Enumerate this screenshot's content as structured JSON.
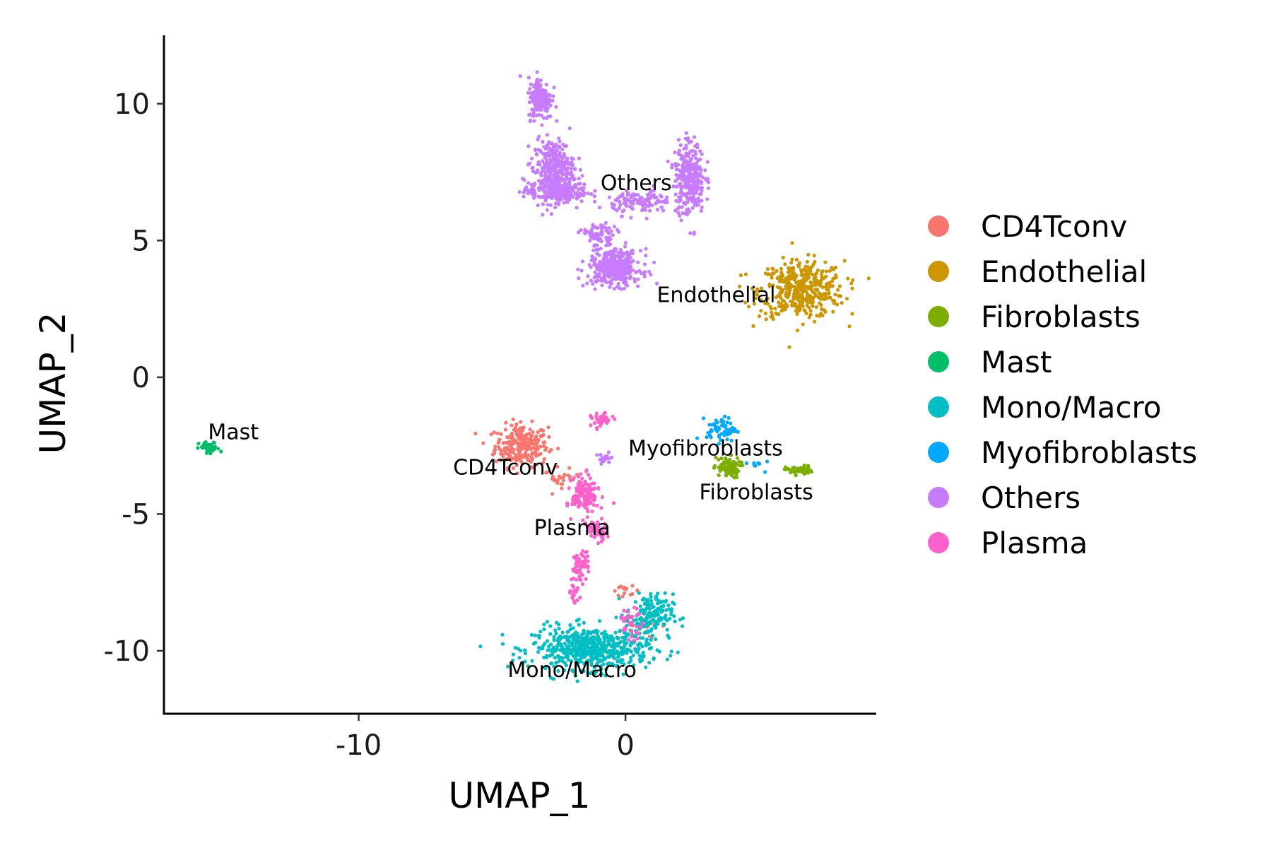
{
  "chart_data": {
    "type": "scatter",
    "title": "",
    "xlabel": "UMAP_1",
    "ylabel": "UMAP_2",
    "xlim": [
      -17.3,
      9.4
    ],
    "ylim": [
      -12.3,
      12.5
    ],
    "xticks": [
      -10,
      0
    ],
    "yticks": [
      -10,
      -5,
      0,
      5,
      10
    ],
    "legend_position": "right",
    "grid": false,
    "series": [
      {
        "name": "CD4Tconv",
        "color": "#F8766D",
        "clusters": [
          {
            "cx": -3.9,
            "cy": -2.5,
            "sx": 0.9,
            "sy": 0.7,
            "n": 260
          },
          {
            "cx": -2.4,
            "cy": -3.7,
            "sx": 0.6,
            "sy": 0.3,
            "n": 25
          },
          {
            "cx": 0.0,
            "cy": -7.8,
            "sx": 0.5,
            "sy": 0.15,
            "n": 15
          },
          {
            "cx": 0.8,
            "cy": -9.0,
            "sx": 0.6,
            "sy": 0.5,
            "n": 12
          }
        ]
      },
      {
        "name": "Endothelial",
        "color": "#CD9600",
        "clusters": [
          {
            "cx": 6.6,
            "cy": 3.2,
            "sx": 1.45,
            "sy": 0.95,
            "n": 420
          }
        ]
      },
      {
        "name": "Fibroblasts",
        "color": "#7CAE00",
        "clusters": [
          {
            "cx": 3.8,
            "cy": -3.3,
            "sx": 0.45,
            "sy": 0.35,
            "n": 80
          },
          {
            "cx": 6.5,
            "cy": -3.4,
            "sx": 0.45,
            "sy": 0.15,
            "n": 45
          }
        ]
      },
      {
        "name": "Mast",
        "color": "#00BE67",
        "clusters": [
          {
            "cx": -15.6,
            "cy": -2.6,
            "sx": 0.35,
            "sy": 0.22,
            "n": 40
          }
        ]
      },
      {
        "name": "Mono/Macro",
        "color": "#00BFC4",
        "clusters": [
          {
            "cx": -1.3,
            "cy": -9.9,
            "sx": 2.0,
            "sy": 0.7,
            "n": 560
          },
          {
            "cx": 0.9,
            "cy": -8.7,
            "sx": 0.8,
            "sy": 0.7,
            "n": 160
          }
        ]
      },
      {
        "name": "Myofibroblasts",
        "color": "#00A9FF",
        "clusters": [
          {
            "cx": 3.6,
            "cy": -1.9,
            "sx": 0.5,
            "sy": 0.4,
            "n": 70
          },
          {
            "cx": 5.4,
            "cy": -3.2,
            "sx": 0.6,
            "sy": 0.2,
            "n": 8
          }
        ]
      },
      {
        "name": "Others",
        "color": "#C77CFF",
        "clusters": [
          {
            "cx": -3.2,
            "cy": 10.2,
            "sx": 0.4,
            "sy": 0.7,
            "n": 180
          },
          {
            "cx": -2.7,
            "cy": 7.6,
            "sx": 0.7,
            "sy": 1.0,
            "n": 320
          },
          {
            "cx": -2.6,
            "cy": 6.8,
            "sx": 1.1,
            "sy": 0.4,
            "n": 200
          },
          {
            "cx": 2.4,
            "cy": 7.3,
            "sx": 0.5,
            "sy": 1.2,
            "n": 300
          },
          {
            "cx": 0.6,
            "cy": 6.4,
            "sx": 1.0,
            "sy": 0.4,
            "n": 120
          },
          {
            "cx": -0.4,
            "cy": 4.0,
            "sx": 0.9,
            "sy": 0.6,
            "n": 360
          },
          {
            "cx": -1.0,
            "cy": 5.2,
            "sx": 0.6,
            "sy": 0.4,
            "n": 80
          },
          {
            "cx": -0.8,
            "cy": -3.0,
            "sx": 0.3,
            "sy": 0.2,
            "n": 15
          }
        ]
      },
      {
        "name": "Plasma",
        "color": "#FF61CC",
        "clusters": [
          {
            "cx": -1.5,
            "cy": -4.3,
            "sx": 0.45,
            "sy": 0.6,
            "n": 150
          },
          {
            "cx": -1.1,
            "cy": -5.6,
            "sx": 0.35,
            "sy": 0.35,
            "n": 60
          },
          {
            "cx": -1.7,
            "cy": -6.9,
            "sx": 0.3,
            "sy": 0.5,
            "n": 60
          },
          {
            "cx": -1.9,
            "cy": -7.9,
            "sx": 0.15,
            "sy": 0.4,
            "n": 20
          },
          {
            "cx": -0.9,
            "cy": -1.6,
            "sx": 0.35,
            "sy": 0.25,
            "n": 35
          },
          {
            "cx": 0.2,
            "cy": -9.0,
            "sx": 0.4,
            "sy": 0.5,
            "n": 35
          }
        ]
      }
    ],
    "annotations": [
      {
        "text": "Others",
        "x": 0.4,
        "y": 7.1
      },
      {
        "text": "Endothelial",
        "x": 3.4,
        "y": 3.0
      },
      {
        "text": "Mast",
        "x": -14.7,
        "y": -2.0
      },
      {
        "text": "CD4Tconv",
        "x": -4.5,
        "y": -3.3
      },
      {
        "text": "Myofibroblasts",
        "x": 3.0,
        "y": -2.6
      },
      {
        "text": "Fibroblasts",
        "x": 4.9,
        "y": -4.2
      },
      {
        "text": "Plasma",
        "x": -2.0,
        "y": -5.5
      },
      {
        "text": "Mono/Macro",
        "x": -2.0,
        "y": -10.7
      }
    ]
  }
}
